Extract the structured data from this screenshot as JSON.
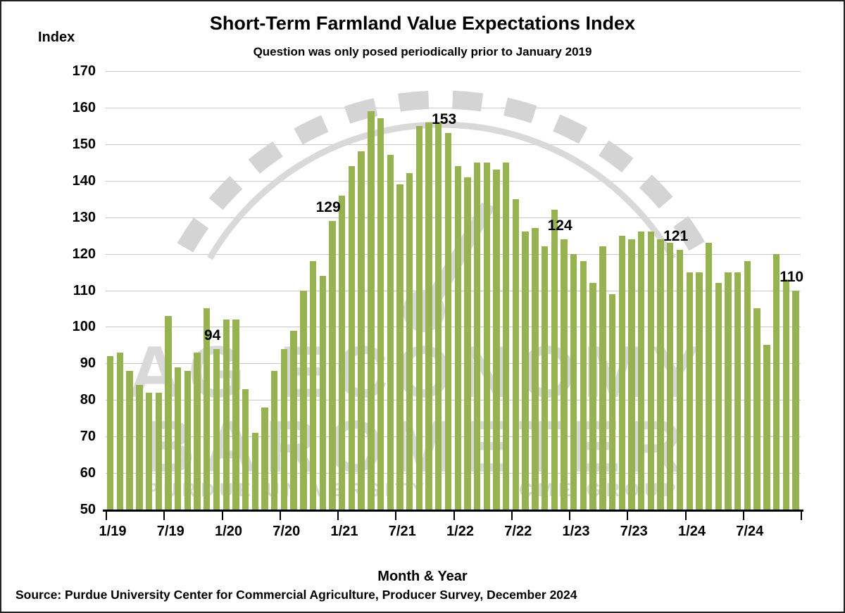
{
  "title": "Short-Term Farmland Value Expectations Index",
  "subtitle": "Question was only posed periodically prior to January 2019",
  "y_axis": {
    "label": "Index",
    "min": 50,
    "max": 170,
    "step": 10
  },
  "x_axis": {
    "label": "Month & Year",
    "tick_labels": [
      "1/19",
      "7/19",
      "1/20",
      "7/20",
      "1/21",
      "7/21",
      "1/22",
      "7/22",
      "1/23",
      "7/23",
      "1/24",
      "7/24"
    ]
  },
  "source": "Source: Purdue University Center for Commercial Agriculture, Producer Survey, December 2024",
  "colors": {
    "bar": "#97b351",
    "grid": "#c8c8c8",
    "watermark": "#d9d9d9",
    "text": "#000000",
    "axis": "#000000"
  },
  "watermark": {
    "line1": "AG ECONOMY",
    "line2": "BAROMETER",
    "line3": "PURDUE UNIVERSITY",
    "line4": "CME GROUP"
  },
  "chart_data": {
    "type": "bar",
    "title": "Short-Term Farmland Value Expectations Index",
    "xlabel": "Month & Year",
    "ylabel": "Index",
    "ylim": [
      50,
      170
    ],
    "grid": true,
    "x": [
      "1/19",
      "2/19",
      "3/19",
      "4/19",
      "5/19",
      "6/19",
      "7/19",
      "8/19",
      "9/19",
      "10/19",
      "11/19",
      "12/19",
      "1/20",
      "2/20",
      "3/20",
      "4/20",
      "5/20",
      "6/20",
      "7/20",
      "8/20",
      "9/20",
      "10/20",
      "11/20",
      "12/20",
      "1/21",
      "2/21",
      "3/21",
      "4/21",
      "5/21",
      "6/21",
      "7/21",
      "8/21",
      "9/21",
      "10/21",
      "11/21",
      "12/21",
      "1/22",
      "2/22",
      "3/22",
      "4/22",
      "5/22",
      "6/22",
      "7/22",
      "8/22",
      "9/22",
      "10/22",
      "11/22",
      "12/22",
      "1/23",
      "2/23",
      "3/23",
      "4/23",
      "5/23",
      "6/23",
      "7/23",
      "8/23",
      "9/23",
      "10/23",
      "11/23",
      "12/23",
      "1/24",
      "2/24",
      "3/24",
      "4/24",
      "5/24",
      "6/24",
      "7/24",
      "8/24",
      "9/24",
      "10/24",
      "11/24",
      "12/24"
    ],
    "values": [
      92,
      93,
      88,
      84,
      82,
      82,
      103,
      89,
      88,
      93,
      105,
      94,
      102,
      102,
      83,
      71,
      78,
      88,
      94,
      99,
      110,
      118,
      114,
      129,
      136,
      144,
      148,
      159,
      157,
      147,
      139,
      142,
      155,
      156,
      156,
      153,
      144,
      141,
      145,
      145,
      143,
      145,
      135,
      126,
      127,
      122,
      132,
      124,
      120,
      118,
      112,
      122,
      109,
      125,
      124,
      126,
      126,
      124,
      123,
      121,
      115,
      115,
      123,
      112,
      115,
      115,
      118,
      105,
      95,
      120,
      113,
      110
    ],
    "annotations": [
      {
        "x": "12/19",
        "month_index": 11,
        "value": 94
      },
      {
        "x": "12/20",
        "month_index": 23,
        "value": 129
      },
      {
        "x": "12/21",
        "month_index": 35,
        "value": 153
      },
      {
        "x": "12/22",
        "month_index": 47,
        "value": 124
      },
      {
        "x": "12/23",
        "month_index": 59,
        "value": 121
      },
      {
        "x": "12/24",
        "month_index": 71,
        "value": 110
      }
    ]
  }
}
